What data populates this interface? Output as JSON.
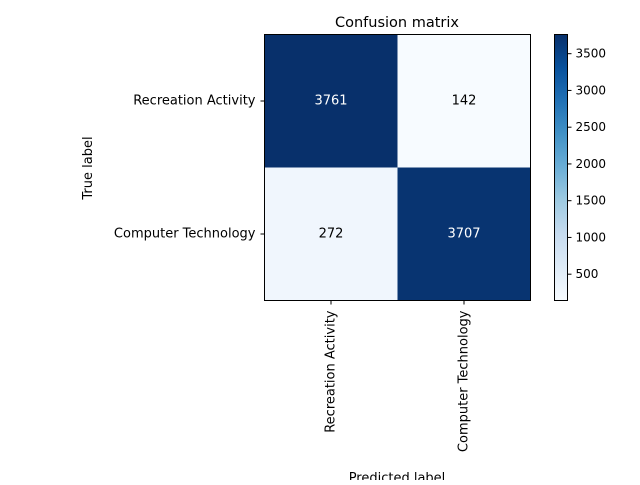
{
  "chart_data": {
    "type": "heatmap",
    "title": "Confusion matrix",
    "xlabel": "Predicted label",
    "ylabel": "True label",
    "row_labels": [
      "Recreation Activity",
      "Computer Technology"
    ],
    "col_labels": [
      "Recreation Activity",
      "Computer Technology"
    ],
    "values": [
      [
        3761,
        142
      ],
      [
        272,
        3707
      ]
    ],
    "colormap": "Blues",
    "colorbar": {
      "ticks": [
        500,
        1000,
        1500,
        2000,
        2500,
        3000,
        3500
      ],
      "range": [
        142,
        3761
      ]
    }
  }
}
